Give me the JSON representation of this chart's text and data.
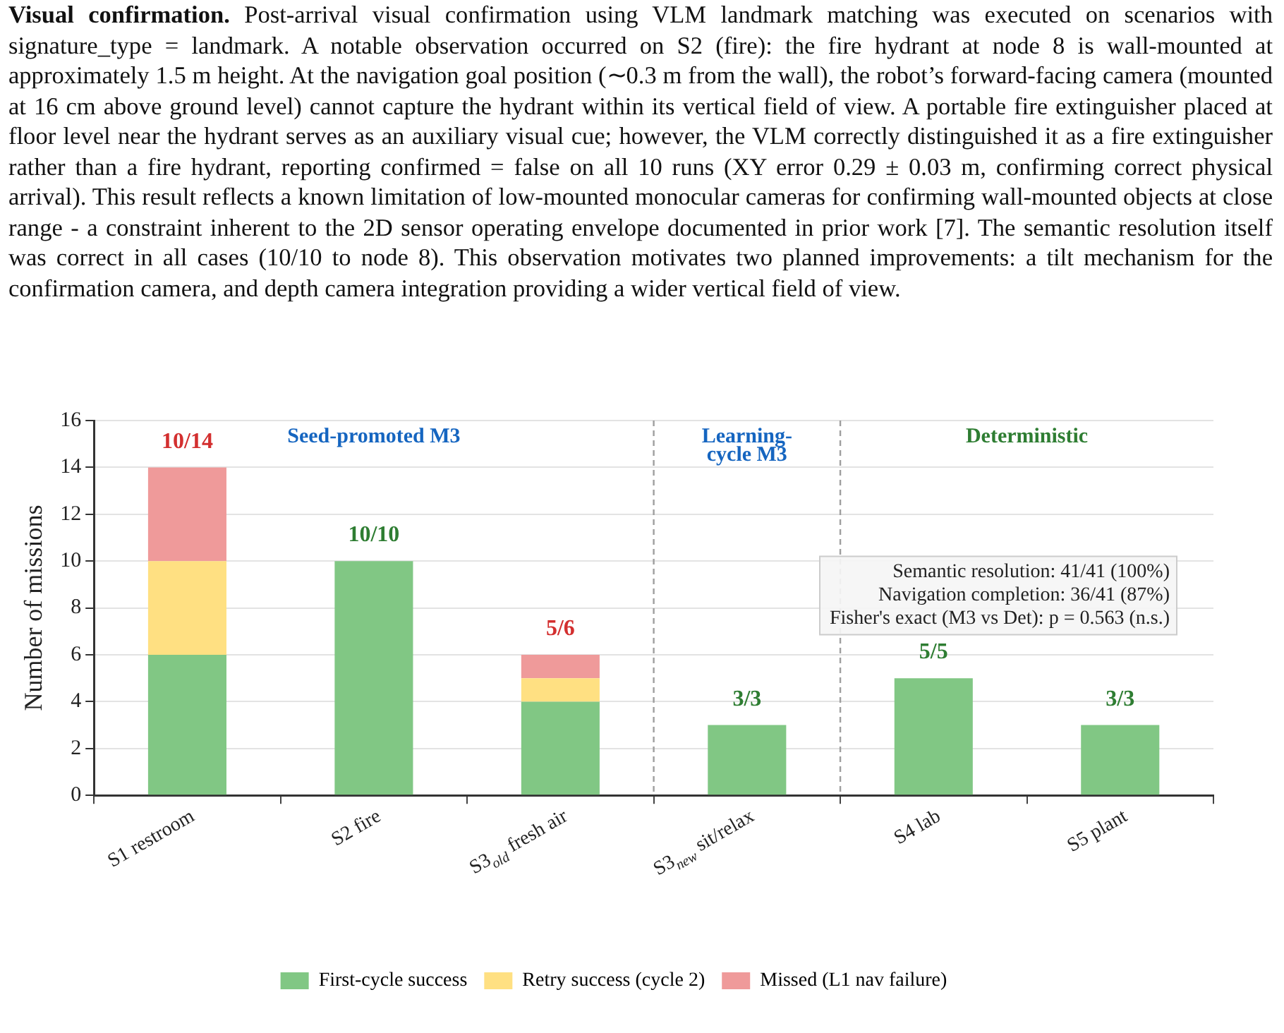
{
  "chart_data": {
    "type": "bar",
    "stacked": true,
    "ylabel": "Number of missions",
    "categories": [
      "S1 restroom",
      "S2 fire",
      "S3$_{old}$ fresh air",
      "S3$_{new}$ sit/relax",
      "S4 lab",
      "S5 plant"
    ],
    "series": [
      {
        "name": "First-cycle success",
        "color": "#81c784",
        "values": [
          6,
          10,
          4,
          3,
          5,
          3
        ]
      },
      {
        "name": "Retry success (cycle 2)",
        "color": "#ffe082",
        "values": [
          4,
          0,
          1,
          0,
          0,
          0
        ]
      },
      {
        "name": "Missed (L1 nav failure)",
        "color": "#ef9a9a",
        "values": [
          4,
          0,
          1,
          0,
          0,
          0
        ]
      }
    ],
    "ylim": [
      0,
      16
    ],
    "yticks": [
      0,
      2,
      4,
      6,
      8,
      10,
      12,
      14,
      16
    ],
    "grid": "y",
    "legend": "bottom",
    "annotations": [
      "Visual confirmation.",
      "Post-arrival visual confirmation using VLM landmark matching was executed on scenarios with signature_type = landmark. A notable observation occurred on S2 (fire): the fire hydrant at node 8 is wall-mounted at approximately 1.5 m height. At the navigation goal position (∼0.3 m from the wall), the robot’s forward-facing camera (mounted at 16 cm above ground level) cannot capture the hydrant within its vertical field of view. A portable fire extinguisher placed at floor level near the hydrant serves as an auxiliary visual cue; however, the VLM correctly distinguished it as a fire extinguisher rather than a fire hydrant, reporting confirmed = false on all 10 runs (XY error 0.29 ± 0.03 m, confirming correct physical arrival). This result reflects a known limitation of low-mounted monocular cameras for confirming wall-mounted objects at close range - a constraint inherent to the 2D sensor operating envelope documented in prior work [7]. The semantic resolution itself was correct in all cases (10/10 to node 8). This observation motivates two planned improvements: a tilt mechanism for the confirmation camera, and depth camera integration providing a wider vertical field of view.",
      "Seed-promoted M3",
      "Learning-\ncycle M3",
      "Deterministic",
      "Semantic resolution: 41/41 (100%)\nNavigation completion: 36/41 (87%)\nFisher's exact (M3 vs Det): p = 0.563 (n.s.)",
      {
        "text": "10/14",
        "x": "S1 restroom",
        "y": 14
      },
      {
        "text": "10/10",
        "x": "S2 fire",
        "y": 10
      },
      {
        "text": "5/6",
        "x": "S3$_{old}$ fresh air",
        "y": 6
      },
      {
        "text": "3/3",
        "x": "S3$_{new}$ sit/relax",
        "y": 3
      },
      {
        "text": "5/5",
        "x": "S4 lab",
        "y": 5
      },
      {
        "text": "3/3",
        "x": "S5 plant",
        "y": 3
      }
    ]
  }
}
